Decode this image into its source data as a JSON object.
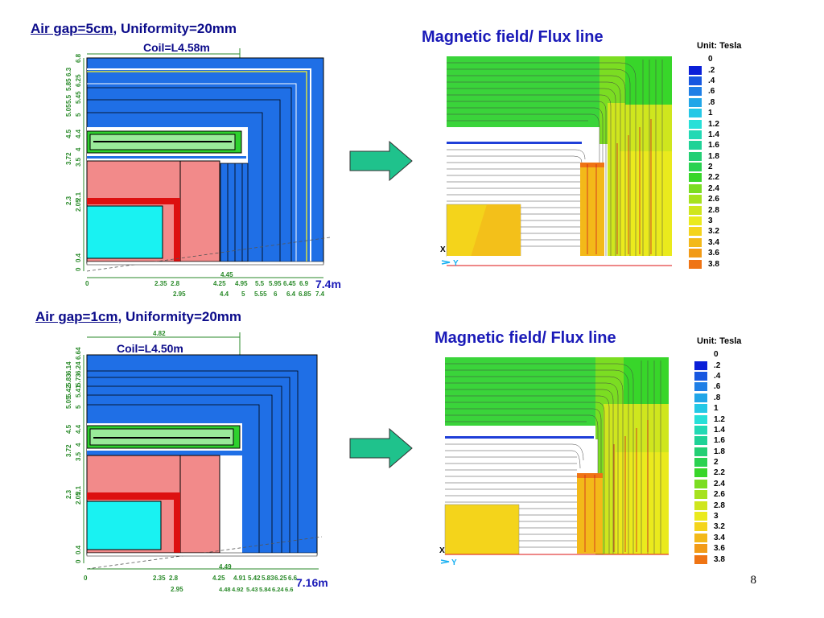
{
  "top": {
    "heading_link": "Air gap=5cm",
    "heading_rest": ", Uniformity=20mm",
    "coil_label": "Coil=L4.58m",
    "total_width_label": "7.4m",
    "mfield_title": "Magnetic field/ Flux line",
    "x_ticks_row1": [
      "0",
      "2.35",
      "2.8",
      "4.25",
      "4.95",
      "5.5",
      "5.95",
      "6.45",
      "6.9"
    ],
    "x_ticks_row2": [
      "2.95",
      "4.4",
      "5",
      "5.55",
      "6",
      "6.4",
      "6.85",
      "7.4"
    ],
    "x_tick_extra": "4.45",
    "y_ticks": [
      "0",
      "0.4",
      "2.05",
      "2.1",
      "2.3",
      "3.5",
      "3.72",
      "4",
      "4.4",
      "4.5",
      "5",
      "5.05",
      "5.45",
      "5.5",
      "5.85",
      "6.25",
      "6.3",
      "6.8"
    ],
    "axis_x": "X",
    "axis_y": "Y"
  },
  "bottom": {
    "heading_link": "Air gap=1cm",
    "heading_rest": ", Uniformity=20mm",
    "coil_label": "Coil=L4.50m",
    "top_dim_label": "4.82",
    "total_width_label": "7.16m",
    "mfield_title": "Magnetic field/ Flux line",
    "x_ticks_row1": [
      "0",
      "2.35",
      "2.8",
      "4.25",
      "4.91",
      "5.42",
      "5.83",
      "6.25",
      "6.6"
    ],
    "x_ticks_row2": [
      "2.95",
      "4.48",
      "4.92",
      "5.43",
      "5.84",
      "6.24",
      "6.6"
    ],
    "x_tick_extra": "4.49",
    "y_ticks": [
      "0",
      "0.4",
      "2.05",
      "2.1",
      "2.3",
      "3.5",
      "3.72",
      "4",
      "4.4",
      "4.5",
      "5",
      "5.05",
      "5.41",
      "5.42",
      "5.73",
      "5.83",
      "6.14",
      "6.24",
      "6.64"
    ],
    "axis_x": "X",
    "axis_y": "Y"
  },
  "legend": {
    "unit_label": "Unit: Tesla",
    "levels": [
      {
        "label": "0",
        "color": "#0a1fd8"
      },
      {
        "label": ".2",
        "color": "#1757e0"
      },
      {
        "label": ".4",
        "color": "#1f7fe6"
      },
      {
        "label": ".6",
        "color": "#22a6e8"
      },
      {
        "label": ".8",
        "color": "#25c8e6"
      },
      {
        "label": "1",
        "color": "#27e0d8"
      },
      {
        "label": "1.2",
        "color": "#22d9b4"
      },
      {
        "label": "1.4",
        "color": "#1fd296"
      },
      {
        "label": "1.6",
        "color": "#24cf74"
      },
      {
        "label": "1.8",
        "color": "#2ad251"
      },
      {
        "label": "2",
        "color": "#38d62a"
      },
      {
        "label": "2.2",
        "color": "#7bdd22"
      },
      {
        "label": "2.4",
        "color": "#a6e21f"
      },
      {
        "label": "2.6",
        "color": "#cfe61e"
      },
      {
        "label": "2.8",
        "color": "#eaea1d"
      },
      {
        "label": "3",
        "color": "#f4d41b"
      },
      {
        "label": "3.2",
        "color": "#f3b919"
      },
      {
        "label": "3.4",
        "color": "#f29b17"
      },
      {
        "label": "3.6",
        "color": "#ef7414"
      },
      {
        "label": "3.8",
        "color": "#e61010"
      }
    ]
  },
  "page_number": "8",
  "colors": {
    "yoke": "#1f6fe6",
    "pole": "#f28a8a",
    "coil_red": "#dd1010",
    "cyan": "#19f2f2",
    "coil_green": "#2ed12e",
    "arrow": "#1fc28c",
    "dim": "#2a8a2a"
  }
}
